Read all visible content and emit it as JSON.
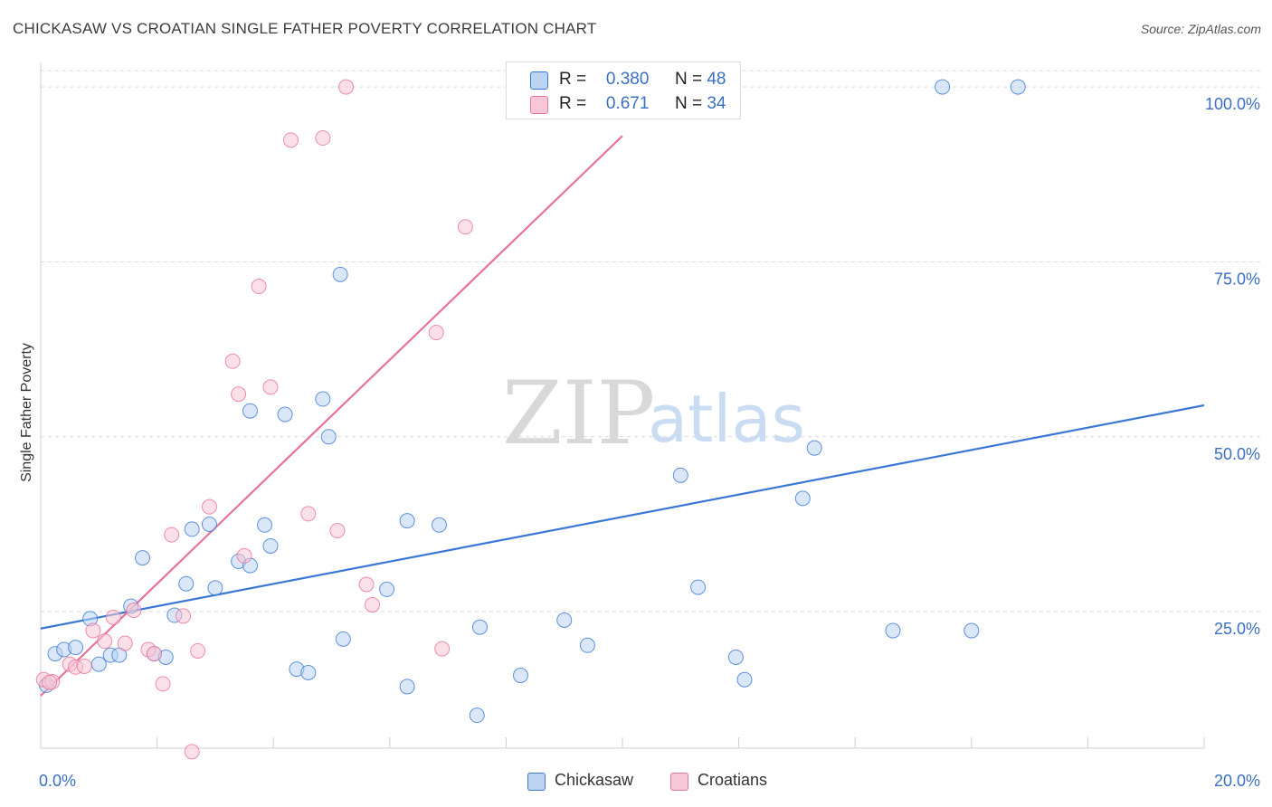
{
  "title": "CHICKASAW VS CROATIAN SINGLE FATHER POVERTY CORRELATION CHART",
  "source": "Source: ZipAtlas.com",
  "watermark": {
    "zip": "ZIP",
    "atlas": "atlas"
  },
  "colors": {
    "blue": "#3a78d4",
    "blue_fill": "#bcd3f2",
    "pink": "#e8739a",
    "pink_fill": "#f7c7d6",
    "grid": "#d9d9d9",
    "axis_label": "#3a6fc4"
  },
  "legend_top": {
    "rows": [
      {
        "r_label": "R =",
        "r_value": "0.380",
        "n_label": "N =",
        "n_value": "48"
      },
      {
        "r_label": "R =",
        "r_value": "0.671",
        "n_label": "N =",
        "n_value": "34"
      }
    ]
  },
  "legend_bottom": [
    {
      "label": "Chickasaw"
    },
    {
      "label": "Croatians"
    }
  ],
  "chart_data": {
    "type": "scatter",
    "title": "CHICKASAW VS CROATIAN SINGLE FATHER POVERTY CORRELATION CHART",
    "xlabel": "",
    "ylabel": "Single Father Poverty",
    "xlim": [
      0,
      20
    ],
    "ylim": [
      5.5,
      103.5
    ],
    "x_tick_labels": [
      "0.0%",
      "20.0%"
    ],
    "y_ticks": [
      25,
      50,
      75,
      100
    ],
    "y_tick_labels": [
      "25.0%",
      "50.0%",
      "75.0%",
      "100.0%"
    ],
    "grid": true,
    "legend_position": "top-center",
    "series": [
      {
        "name": "Chickasaw",
        "color": "#3a78d4",
        "trend": {
          "x0": 0,
          "y0": 22.6,
          "x1": 20,
          "y1": 54.5
        },
        "points": [
          [
            0.1,
            14.5
          ],
          [
            0.25,
            19.0
          ],
          [
            0.4,
            19.6
          ],
          [
            0.6,
            19.9
          ],
          [
            0.85,
            24.0
          ],
          [
            1.0,
            17.5
          ],
          [
            1.2,
            18.8
          ],
          [
            1.35,
            18.8
          ],
          [
            1.55,
            25.8
          ],
          [
            1.75,
            32.7
          ],
          [
            1.95,
            19.0
          ],
          [
            2.15,
            18.5
          ],
          [
            2.3,
            24.5
          ],
          [
            2.5,
            29.0
          ],
          [
            2.6,
            36.8
          ],
          [
            2.9,
            37.5
          ],
          [
            3.0,
            28.4
          ],
          [
            3.4,
            32.2
          ],
          [
            3.6,
            31.6
          ],
          [
            3.6,
            53.7
          ],
          [
            3.85,
            37.4
          ],
          [
            3.95,
            34.4
          ],
          [
            4.2,
            53.2
          ],
          [
            4.4,
            16.8
          ],
          [
            4.6,
            16.3
          ],
          [
            4.85,
            55.4
          ],
          [
            4.95,
            50.0
          ],
          [
            5.15,
            73.2
          ],
          [
            5.2,
            21.1
          ],
          [
            5.95,
            28.2
          ],
          [
            6.3,
            38.0
          ],
          [
            6.3,
            14.3
          ],
          [
            6.85,
            37.4
          ],
          [
            7.5,
            10.2
          ],
          [
            7.55,
            22.8
          ],
          [
            8.25,
            15.9
          ],
          [
            9.0,
            23.8
          ],
          [
            9.4,
            20.2
          ],
          [
            11.0,
            44.5
          ],
          [
            11.3,
            28.5
          ],
          [
            11.95,
            18.5
          ],
          [
            12.1,
            15.3
          ],
          [
            13.1,
            41.2
          ],
          [
            13.3,
            48.4
          ],
          [
            14.65,
            22.3
          ],
          [
            16.0,
            22.3
          ],
          [
            15.5,
            100.0
          ],
          [
            16.8,
            100.0
          ]
        ]
      },
      {
        "name": "Croatians",
        "color": "#e8739a",
        "trend": {
          "x0": 0,
          "y0": 13.0,
          "x1": 10.0,
          "y1": 93.0
        },
        "points": [
          [
            0.05,
            15.3
          ],
          [
            0.2,
            15.0
          ],
          [
            0.5,
            17.5
          ],
          [
            0.6,
            17.1
          ],
          [
            0.75,
            17.2
          ],
          [
            0.9,
            22.3
          ],
          [
            1.1,
            20.8
          ],
          [
            1.25,
            24.2
          ],
          [
            1.45,
            20.5
          ],
          [
            1.6,
            25.2
          ],
          [
            1.85,
            19.6
          ],
          [
            1.95,
            19.0
          ],
          [
            2.1,
            14.7
          ],
          [
            2.25,
            36.0
          ],
          [
            2.45,
            24.4
          ],
          [
            2.6,
            5.0
          ],
          [
            2.7,
            19.4
          ],
          [
            2.9,
            40.0
          ],
          [
            3.3,
            60.8
          ],
          [
            3.4,
            56.1
          ],
          [
            3.5,
            33.0
          ],
          [
            3.75,
            71.5
          ],
          [
            3.95,
            57.1
          ],
          [
            4.3,
            92.4
          ],
          [
            4.6,
            39.0
          ],
          [
            4.85,
            92.7
          ],
          [
            5.1,
            36.6
          ],
          [
            5.25,
            100.0
          ],
          [
            5.6,
            28.9
          ],
          [
            5.7,
            26.0
          ],
          [
            6.8,
            64.9
          ],
          [
            6.9,
            19.7
          ],
          [
            7.3,
            80.0
          ],
          [
            0.15,
            14.9
          ]
        ]
      }
    ]
  }
}
